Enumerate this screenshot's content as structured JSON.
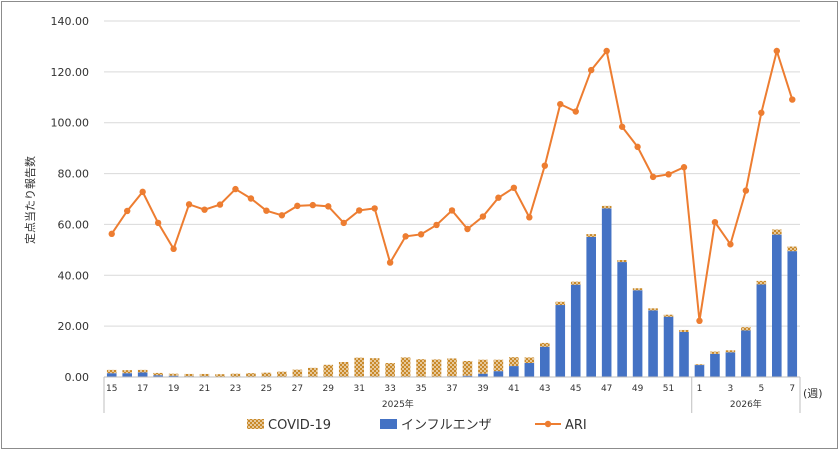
{
  "chart_data": {
    "type": "bar+line",
    "title": "",
    "ylabel": "定点当たり報告数",
    "xunit": "(週)",
    "ylim": [
      0,
      140
    ],
    "yticks": [
      "0.00",
      "20.00",
      "40.00",
      "60.00",
      "80.00",
      "100.00",
      "120.00",
      "140.00"
    ],
    "grid": true,
    "legend_position": "bottom",
    "year_groups": [
      {
        "label": "2025年",
        "weeks": [
          15,
          16,
          17,
          18,
          19,
          20,
          21,
          22,
          23,
          24,
          25,
          26,
          27,
          28,
          29,
          30,
          31,
          32,
          33,
          34,
          35,
          36,
          37,
          38,
          39,
          40,
          41,
          42,
          43,
          44,
          45,
          46,
          47,
          48,
          49,
          50,
          51,
          52
        ]
      },
      {
        "label": "2026年",
        "weeks": [
          1,
          2,
          3,
          4,
          5,
          6,
          7
        ]
      }
    ],
    "x_tick_labels": [
      "15",
      "",
      "17",
      "",
      "19",
      "",
      "21",
      "",
      "23",
      "",
      "25",
      "",
      "27",
      "",
      "29",
      "",
      "31",
      "",
      "33",
      "",
      "35",
      "",
      "37",
      "",
      "39",
      "",
      "41",
      "",
      "43",
      "",
      "45",
      "",
      "47",
      "",
      "49",
      "",
      "51",
      "",
      "1",
      "",
      "3",
      "",
      "5",
      "",
      "7"
    ],
    "series": [
      {
        "name": "COVID-19",
        "type": "bar-stacked",
        "color": "#d9a441",
        "values": [
          1.3,
          1.2,
          1.0,
          0.9,
          0.8,
          0.9,
          0.9,
          1.0,
          1.2,
          1.4,
          1.6,
          2.0,
          2.8,
          3.5,
          4.7,
          5.8,
          7.5,
          7.3,
          5.3,
          7.5,
          6.8,
          6.7,
          7.0,
          5.8,
          5.5,
          4.5,
          3.5,
          2.2,
          1.5,
          1.3,
          1.2,
          1.1,
          1.0,
          0.8,
          0.8,
          0.8,
          0.8,
          0.8,
          0.3,
          0.9,
          0.8,
          1.3,
          1.4,
          2.0,
          1.8
        ]
      },
      {
        "name": "インフルエンザ",
        "type": "bar-stacked",
        "color": "#4472c4",
        "values": [
          1.5,
          1.5,
          1.8,
          0.7,
          0.5,
          0.3,
          0.3,
          0.1,
          0.1,
          0.1,
          0.1,
          0.1,
          0.1,
          0.1,
          0.1,
          0.1,
          0.1,
          0.1,
          0.2,
          0.2,
          0.2,
          0.2,
          0.3,
          0.5,
          1.3,
          2.3,
          4.3,
          5.5,
          11.9,
          28.3,
          36.3,
          55.1,
          66.3,
          45.2,
          34.1,
          26.2,
          23.7,
          17.7,
          4.7,
          9.1,
          9.7,
          18.3,
          36.4,
          56.0,
          49.5
        ]
      },
      {
        "name": "ARI",
        "type": "line",
        "color": "#ed7d31",
        "values": [
          56.3,
          65.3,
          72.8,
          60.6,
          50.4,
          67.9,
          65.8,
          67.8,
          73.9,
          70.2,
          65.4,
          63.6,
          67.3,
          67.6,
          67.1,
          60.6,
          65.5,
          66.3,
          45.0,
          55.3,
          56.1,
          59.8,
          65.5,
          58.2,
          63.1,
          70.5,
          74.4,
          62.8,
          83.1,
          107.3,
          104.4,
          120.7,
          128.2,
          98.4,
          90.5,
          78.7,
          79.7,
          82.5,
          22.1,
          60.9,
          52.2,
          73.3,
          103.9,
          128.2,
          109.1
        ]
      }
    ]
  }
}
